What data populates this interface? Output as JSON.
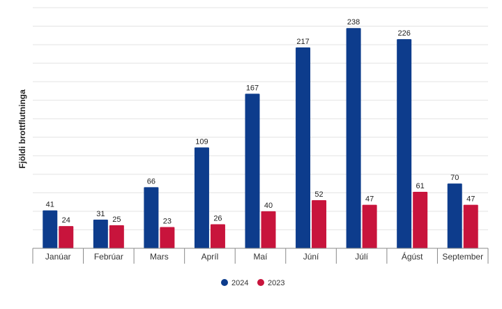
{
  "chart_data": {
    "type": "bar",
    "ylabel": "Fjöldi brottflutninga",
    "categories": [
      "Janúar",
      "Febrúar",
      "Mars",
      "Apríl",
      "Maí",
      "Júní",
      "Júlí",
      "Ágúst",
      "September"
    ],
    "series": [
      {
        "name": "2024",
        "color": "#0d3c8c",
        "values": [
          41,
          31,
          66,
          109,
          167,
          217,
          238,
          226,
          70
        ]
      },
      {
        "name": "2023",
        "color": "#c8143c",
        "values": [
          24,
          25,
          23,
          26,
          40,
          52,
          47,
          61,
          47
        ]
      }
    ],
    "ylim": [
      0,
      260
    ],
    "grid": true,
    "legend": "bottom-center"
  }
}
